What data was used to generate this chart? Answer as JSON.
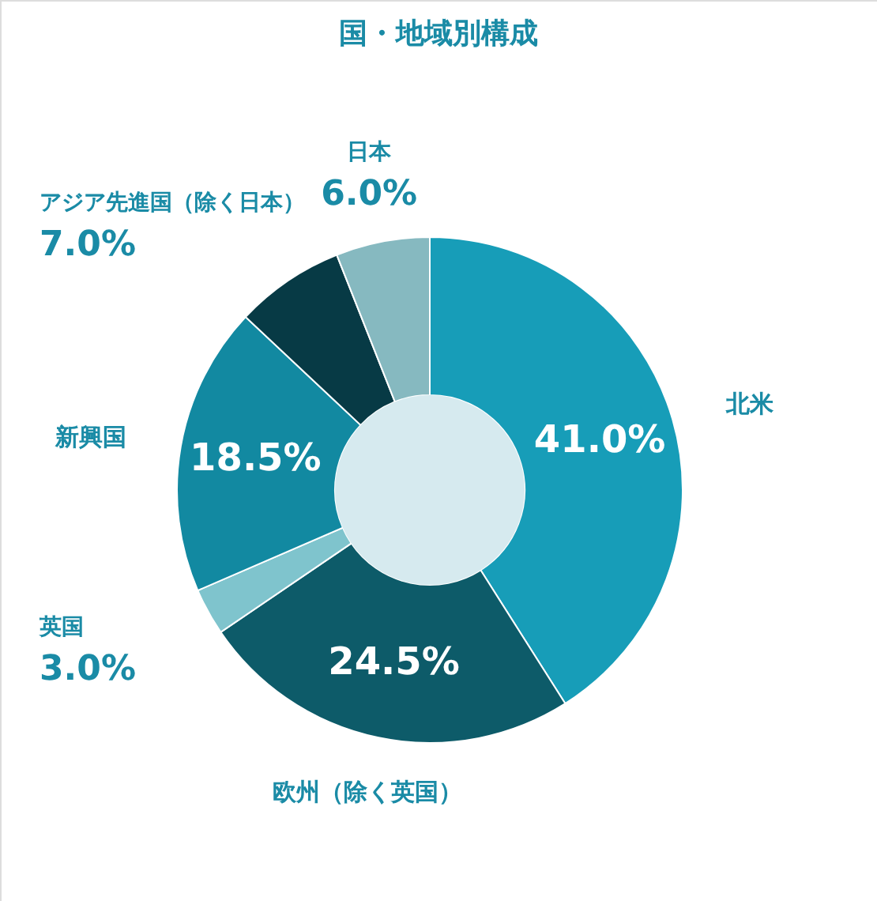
{
  "chart_data": {
    "type": "donut",
    "title": "国・地域別構成",
    "categories": [
      "北米",
      "欧州（除く英国）",
      "英国",
      "新興国",
      "アジア先進国（除く日本）",
      "日本"
    ],
    "values": [
      41.0,
      24.5,
      3.0,
      18.5,
      7.0,
      6.0
    ],
    "colors": [
      "#179db8",
      "#0d5b69",
      "#7fc4cd",
      "#1289a1",
      "#073a45",
      "#86b9c0"
    ],
    "value_labels": [
      "41.0%",
      "24.5%",
      "3.0%",
      "18.5%",
      "7.0%",
      "6.0%"
    ]
  }
}
